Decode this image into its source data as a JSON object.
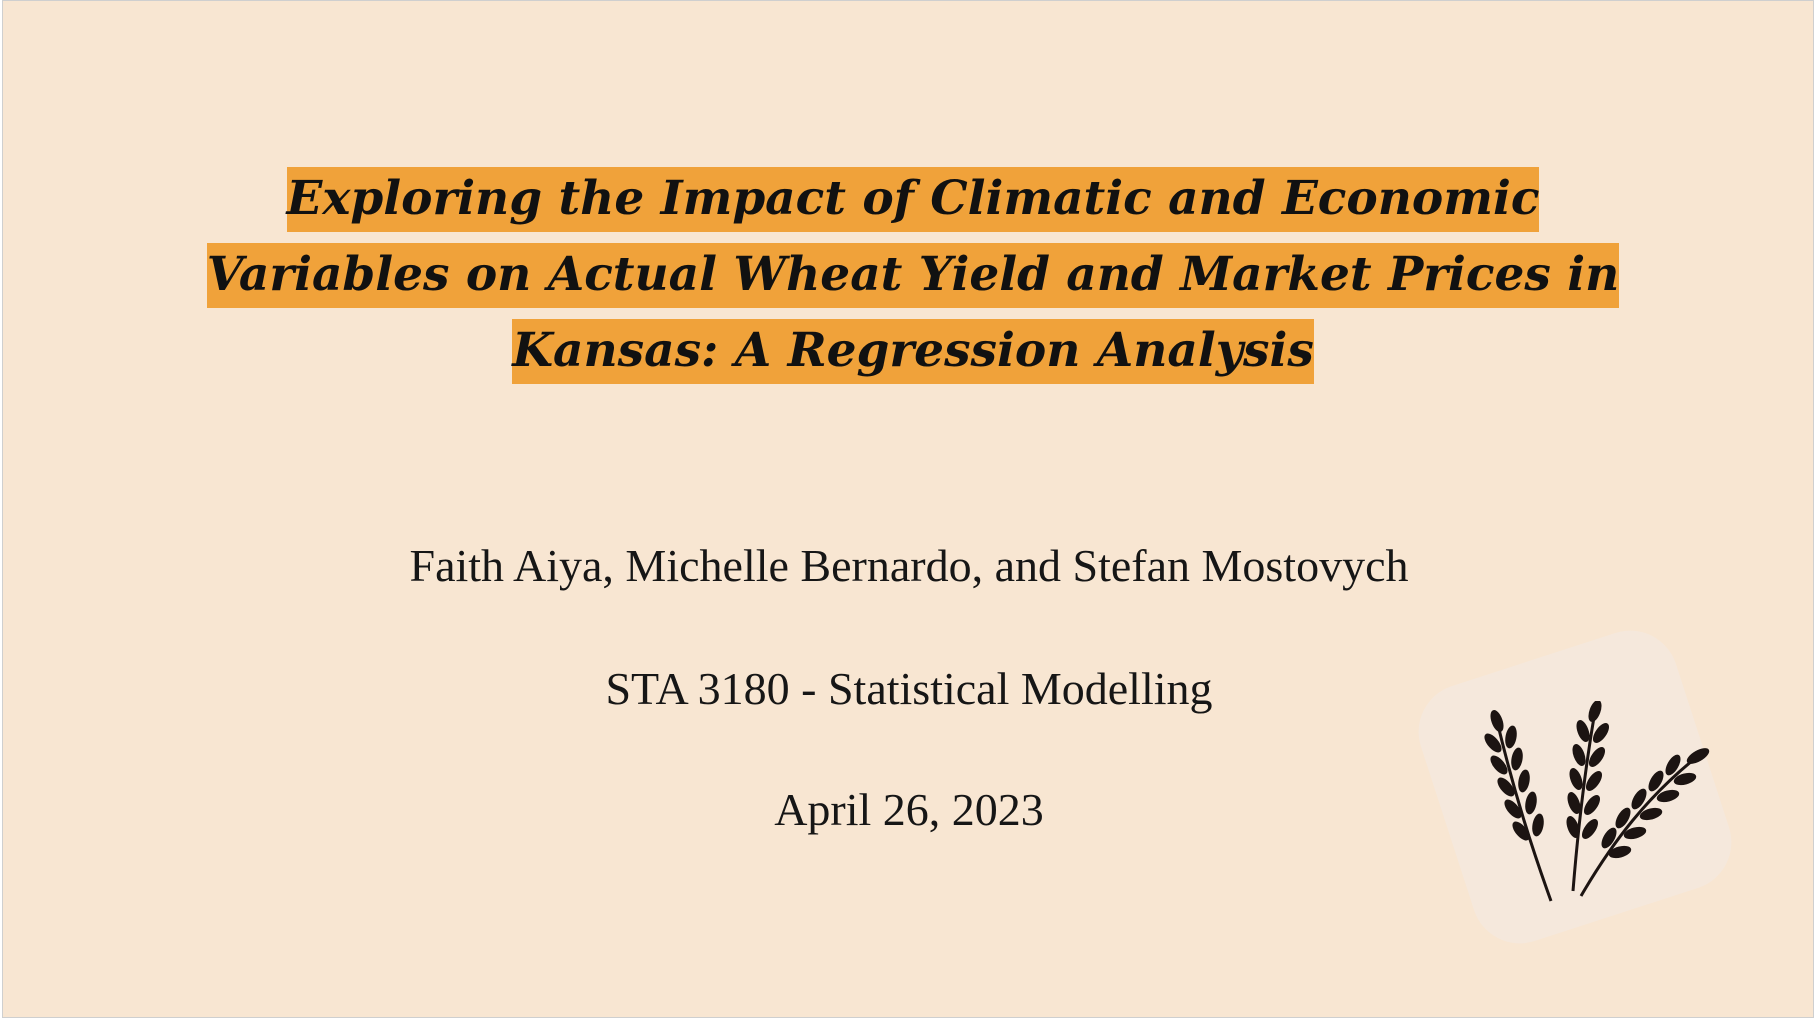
{
  "slide": {
    "title": "Exploring the Impact of Climatic and Economic Variables on Actual Wheat Yield and Market Prices in Kansas: A Regression Analysis",
    "authors": "Faith Aiya, Michelle Bernardo, and Stefan Mostovych",
    "course": "STA 3180 - Statistical Modelling",
    "date": "April 26, 2023",
    "illustration_icon": "wheat-icon"
  },
  "colors": {
    "background": "#f8e6d2",
    "title_highlight": "#f0a23a",
    "text": "#161616",
    "badge": "#f5e8dc"
  }
}
